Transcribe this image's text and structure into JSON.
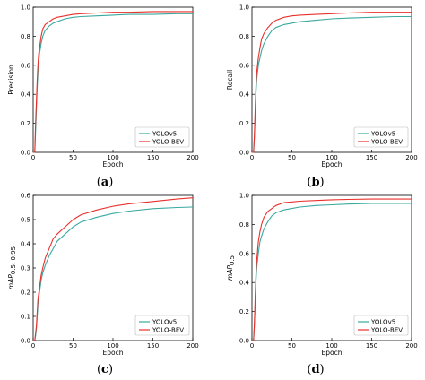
{
  "colors": {
    "yolov5": "#3aa99f",
    "yolobev": "#e8312c"
  },
  "chart_data": [
    {
      "type": "line",
      "panel": "a",
      "caption_open": "(",
      "caption_letter": "a",
      "caption_close": ")",
      "xlabel": "Epoch",
      "ylabel": "Precision",
      "ylabel_sub": "",
      "xlim": [
        0,
        200
      ],
      "ylim": [
        0,
        1.0
      ],
      "xticks": [
        "0",
        "50",
        "100",
        "150",
        "200"
      ],
      "yticks": [
        "0.0",
        "0.2",
        "0.4",
        "0.6",
        "0.8",
        "1.0"
      ],
      "legend": "bottom-right",
      "series": [
        {
          "name": "YOLOv5",
          "color_key": "yolov5",
          "x": [
            0,
            2,
            3,
            4,
            5,
            6,
            7,
            8,
            10,
            12,
            15,
            20,
            25,
            30,
            40,
            50,
            60,
            80,
            100,
            120,
            150,
            180,
            200
          ],
          "y": [
            0,
            0,
            0.15,
            0.3,
            0.45,
            0.55,
            0.62,
            0.68,
            0.75,
            0.8,
            0.84,
            0.87,
            0.89,
            0.9,
            0.92,
            0.93,
            0.935,
            0.94,
            0.945,
            0.95,
            0.95,
            0.955,
            0.955
          ]
        },
        {
          "name": "YOLO-BEV",
          "color_key": "yolobev",
          "x": [
            0,
            2,
            3,
            4,
            5,
            6,
            7,
            8,
            10,
            12,
            15,
            20,
            25,
            30,
            40,
            50,
            60,
            80,
            100,
            120,
            150,
            180,
            200
          ],
          "y": [
            0,
            0,
            0.2,
            0.35,
            0.5,
            0.6,
            0.68,
            0.72,
            0.8,
            0.85,
            0.88,
            0.9,
            0.92,
            0.93,
            0.94,
            0.95,
            0.955,
            0.96,
            0.965,
            0.965,
            0.97,
            0.97,
            0.97
          ]
        }
      ]
    },
    {
      "type": "line",
      "panel": "b",
      "caption_open": "(",
      "caption_letter": "b",
      "caption_close": ")",
      "xlabel": "Epoch",
      "ylabel": "Recall",
      "ylabel_sub": "",
      "xlim": [
        0,
        200
      ],
      "ylim": [
        0,
        1.0
      ],
      "xticks": [
        "0",
        "50",
        "100",
        "150",
        "200"
      ],
      "yticks": [
        "0.0",
        "0.2",
        "0.4",
        "0.6",
        "0.8",
        "1.0"
      ],
      "legend": "bottom-right",
      "series": [
        {
          "name": "YOLOv5",
          "color_key": "yolov5",
          "x": [
            0,
            2,
            3,
            4,
            5,
            6,
            8,
            10,
            12,
            15,
            20,
            25,
            30,
            40,
            50,
            60,
            80,
            100,
            120,
            150,
            180,
            200
          ],
          "y": [
            0,
            0,
            0.1,
            0.25,
            0.4,
            0.5,
            0.6,
            0.65,
            0.7,
            0.75,
            0.8,
            0.84,
            0.86,
            0.88,
            0.89,
            0.9,
            0.91,
            0.92,
            0.925,
            0.93,
            0.935,
            0.935
          ]
        },
        {
          "name": "YOLO-BEV",
          "color_key": "yolobev",
          "x": [
            0,
            2,
            3,
            4,
            5,
            6,
            8,
            10,
            12,
            15,
            20,
            25,
            30,
            40,
            50,
            60,
            80,
            100,
            120,
            150,
            180,
            200
          ],
          "y": [
            0,
            0,
            0.12,
            0.3,
            0.45,
            0.55,
            0.65,
            0.72,
            0.78,
            0.82,
            0.86,
            0.89,
            0.91,
            0.93,
            0.94,
            0.945,
            0.95,
            0.955,
            0.96,
            0.965,
            0.965,
            0.965
          ]
        }
      ]
    },
    {
      "type": "line",
      "panel": "c",
      "caption_open": "(",
      "caption_letter": "c",
      "caption_close": ")",
      "xlabel": "Epoch",
      "ylabel": "mAP",
      "ylabel_sub": "0.5: 0.95",
      "xlim": [
        0,
        200
      ],
      "ylim": [
        0,
        0.6
      ],
      "xticks": [
        "0",
        "50",
        "100",
        "150",
        "200"
      ],
      "yticks": [
        "0.0",
        "0.1",
        "0.2",
        "0.3",
        "0.4",
        "0.5",
        "0.6"
      ],
      "legend": "bottom-right",
      "series": [
        {
          "name": "YOLOv5",
          "color_key": "yolov5",
          "x": [
            0,
            2,
            3,
            4,
            5,
            6,
            8,
            10,
            12,
            15,
            20,
            25,
            30,
            40,
            50,
            60,
            80,
            100,
            120,
            150,
            180,
            200
          ],
          "y": [
            0,
            0,
            0.02,
            0.05,
            0.1,
            0.15,
            0.2,
            0.25,
            0.28,
            0.31,
            0.35,
            0.38,
            0.41,
            0.44,
            0.47,
            0.49,
            0.51,
            0.525,
            0.535,
            0.545,
            0.55,
            0.552
          ]
        },
        {
          "name": "YOLO-BEV",
          "color_key": "yolobev",
          "x": [
            0,
            2,
            3,
            4,
            5,
            6,
            8,
            10,
            12,
            15,
            20,
            25,
            30,
            40,
            50,
            60,
            80,
            100,
            120,
            150,
            180,
            200
          ],
          "y": [
            0,
            0,
            0.03,
            0.06,
            0.12,
            0.17,
            0.22,
            0.27,
            0.3,
            0.34,
            0.38,
            0.42,
            0.44,
            0.47,
            0.5,
            0.52,
            0.54,
            0.555,
            0.565,
            0.575,
            0.585,
            0.59
          ]
        }
      ]
    },
    {
      "type": "line",
      "panel": "d",
      "caption_open": "(",
      "caption_letter": "d",
      "caption_close": ")",
      "xlabel": "Epoch",
      "ylabel": "mAP",
      "ylabel_sub": "0.5",
      "xlim": [
        0,
        200
      ],
      "ylim": [
        0,
        1.0
      ],
      "xticks": [
        "0",
        "50",
        "100",
        "150",
        "200"
      ],
      "yticks": [
        "0.0",
        "0.2",
        "0.4",
        "0.6",
        "0.8",
        "1.0"
      ],
      "legend": "bottom-right",
      "series": [
        {
          "name": "YOLOv5",
          "color_key": "yolov5",
          "x": [
            0,
            2,
            3,
            4,
            5,
            6,
            8,
            10,
            12,
            15,
            20,
            25,
            30,
            40,
            50,
            60,
            80,
            100,
            120,
            150,
            180,
            200
          ],
          "y": [
            0,
            0,
            0.1,
            0.25,
            0.4,
            0.5,
            0.6,
            0.68,
            0.72,
            0.77,
            0.82,
            0.86,
            0.88,
            0.9,
            0.91,
            0.92,
            0.93,
            0.935,
            0.94,
            0.945,
            0.945,
            0.945
          ]
        },
        {
          "name": "YOLO-BEV",
          "color_key": "yolobev",
          "x": [
            0,
            2,
            3,
            4,
            5,
            6,
            8,
            10,
            12,
            15,
            20,
            25,
            30,
            40,
            50,
            60,
            80,
            100,
            120,
            150,
            180,
            200
          ],
          "y": [
            0,
            0,
            0.12,
            0.3,
            0.45,
            0.55,
            0.68,
            0.75,
            0.8,
            0.85,
            0.89,
            0.91,
            0.93,
            0.95,
            0.955,
            0.96,
            0.965,
            0.97,
            0.972,
            0.975,
            0.975,
            0.975
          ]
        }
      ]
    }
  ]
}
